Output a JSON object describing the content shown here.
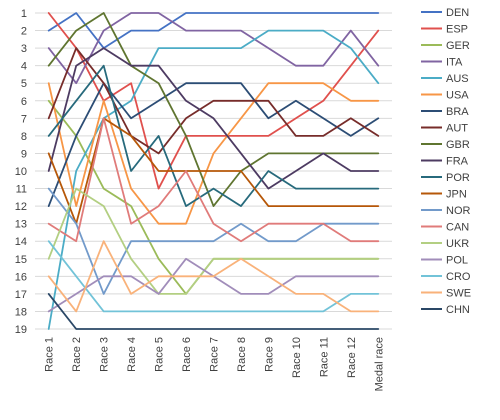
{
  "chart_data": {
    "type": "line",
    "title": "",
    "xlabel": "",
    "ylabel": "",
    "y_inverted": true,
    "ylim": [
      1,
      19
    ],
    "y_ticks": [
      "1",
      "2",
      "3",
      "4",
      "5",
      "6",
      "7",
      "8",
      "9",
      "10",
      "11",
      "12",
      "13",
      "14",
      "15",
      "16",
      "17",
      "18",
      "19"
    ],
    "categories": [
      "Race 1",
      "Race 2",
      "Race 3",
      "Race 4",
      "Race 5",
      "Race 6",
      "Race 7",
      "Race 8",
      "Race 9",
      "Race 10",
      "Race 11",
      "Race 12",
      "Medal race"
    ],
    "grid": "horizontal",
    "legend_position": "right",
    "series": [
      {
        "name": "DEN",
        "color": "#4472c4",
        "values": [
          2,
          1,
          3,
          2,
          2,
          1,
          1,
          1,
          1,
          1,
          1,
          1,
          1
        ]
      },
      {
        "name": "ESP",
        "color": "#e0504d",
        "values": [
          1,
          3,
          6,
          5,
          11,
          8,
          8,
          8,
          8,
          7,
          6,
          4,
          2
        ]
      },
      {
        "name": "GER",
        "color": "#9bbb59",
        "values": [
          6,
          8,
          11,
          12,
          15,
          17,
          15,
          15,
          15,
          15,
          15,
          15,
          15
        ]
      },
      {
        "name": "ITA",
        "color": "#8064a2",
        "values": [
          3,
          5,
          2,
          1,
          1,
          2,
          2,
          2,
          3,
          4,
          4,
          2,
          4
        ]
      },
      {
        "name": "AUS",
        "color": "#4bacc6",
        "values": [
          19,
          10,
          7,
          6,
          3,
          3,
          3,
          3,
          2,
          2,
          2,
          3,
          5
        ]
      },
      {
        "name": "USA",
        "color": "#f79646",
        "values": [
          5,
          12,
          6,
          11,
          13,
          13,
          9,
          7,
          5,
          5,
          5,
          6,
          6
        ]
      },
      {
        "name": "BRA",
        "color": "#2c4d75",
        "values": [
          12,
          8,
          5,
          7,
          6,
          5,
          5,
          5,
          7,
          6,
          7,
          8,
          7
        ]
      },
      {
        "name": "AUT",
        "color": "#772c2a",
        "values": [
          7,
          3,
          5,
          8,
          9,
          7,
          6,
          6,
          6,
          8,
          8,
          7,
          8
        ]
      },
      {
        "name": "GBR",
        "color": "#5f7530",
        "values": [
          4,
          2,
          1,
          4,
          5,
          8,
          12,
          10,
          9,
          9,
          9,
          9,
          9
        ]
      },
      {
        "name": "FRA",
        "color": "#4d3b62",
        "values": [
          10,
          4,
          3,
          4,
          4,
          6,
          7,
          9,
          11,
          10,
          9,
          10,
          10
        ]
      },
      {
        "name": "POR",
        "color": "#276a7c",
        "values": [
          8,
          6,
          4,
          10,
          8,
          12,
          11,
          12,
          10,
          11,
          11,
          11,
          11
        ]
      },
      {
        "name": "JPN",
        "color": "#b65708",
        "values": [
          9,
          13,
          7,
          8,
          10,
          10,
          10,
          10,
          12,
          12,
          12,
          12,
          12
        ]
      },
      {
        "name": "NOR",
        "color": "#729aca",
        "values": [
          11,
          13,
          17,
          14,
          14,
          14,
          14,
          13,
          14,
          14,
          13,
          13,
          13
        ]
      },
      {
        "name": "CAN",
        "color": "#e07b7a",
        "values": [
          13,
          14,
          7,
          13,
          12,
          10,
          13,
          14,
          13,
          13,
          13,
          14,
          14
        ]
      },
      {
        "name": "UKR",
        "color": "#b3cf82",
        "values": [
          15,
          11,
          12,
          15,
          17,
          17,
          15,
          15,
          15,
          15,
          15,
          15,
          15
        ]
      },
      {
        "name": "POL",
        "color": "#a18dba",
        "values": [
          18,
          17,
          16,
          16,
          17,
          15,
          16,
          17,
          17,
          16,
          16,
          16,
          16
        ]
      },
      {
        "name": "CRO",
        "color": "#72c3d8",
        "values": [
          14,
          16,
          18,
          18,
          18,
          18,
          18,
          18,
          18,
          18,
          18,
          17,
          17
        ]
      },
      {
        "name": "SWE",
        "color": "#f9b27a",
        "values": [
          16,
          18,
          14,
          17,
          16,
          16,
          16,
          15,
          16,
          17,
          17,
          18,
          18
        ]
      },
      {
        "name": "CHN",
        "color": "#2a4766",
        "values": [
          17,
          19,
          19,
          19,
          19,
          19,
          19,
          19,
          19,
          19,
          19,
          19,
          19
        ]
      }
    ]
  }
}
